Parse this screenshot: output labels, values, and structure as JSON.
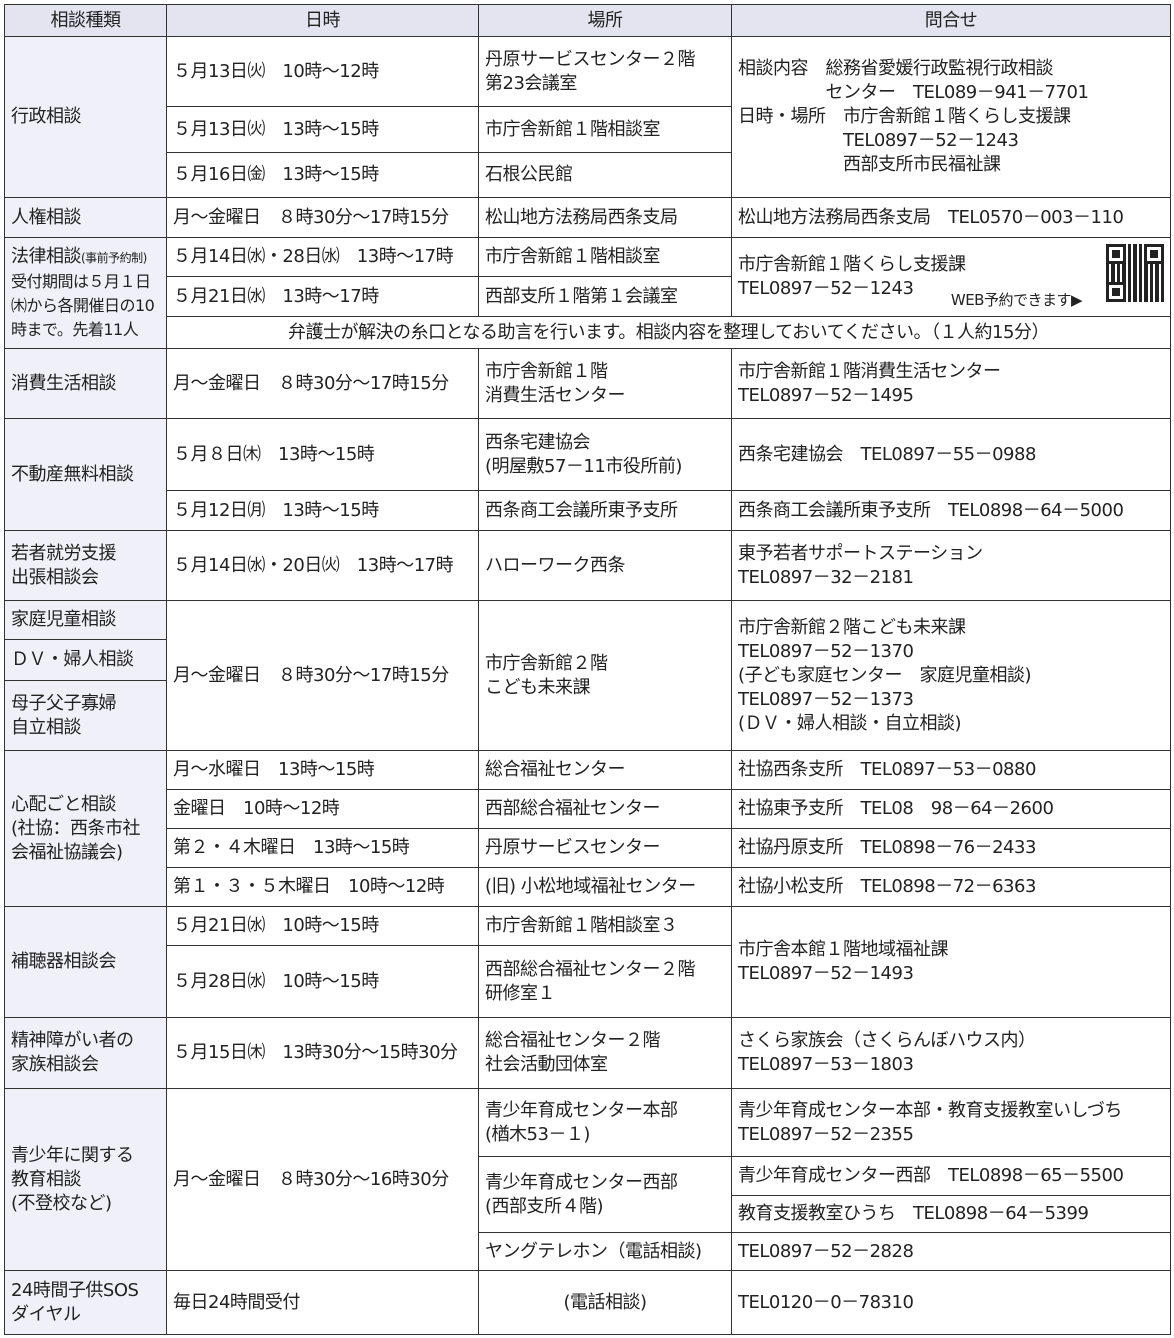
{
  "headers": [
    "相談種類",
    "日時",
    "場所",
    "問合せ"
  ],
  "gyosei": {
    "category": "行政相談",
    "rows": [
      {
        "datetime": "５月13日㈫　10時～12時",
        "place": "丹原サービスセンター２階\n第23会議室"
      },
      {
        "datetime": "５月13日㈫　13時～15時",
        "place": "市庁舎新館１階相談室"
      },
      {
        "datetime": "５月16日㈮　13時～15時",
        "place": "石根公民館"
      }
    ],
    "contact": "相談内容　総務省愛媛行政監視行政相談\n　　　　　センター　TEL089－941－7701\n日時・場所　市庁舎新館１階くらし支援課\n　　　　　　TEL0897－52－1243\n　　　　　　西部支所市民福祉課"
  },
  "jinken": {
    "category": "人権相談",
    "datetime": "月～金曜日　８時30分～17時15分",
    "place": "松山地方法務局西条支局",
    "contact": "松山地方法務局西条支局　TEL0570－003－110"
  },
  "horitsu": {
    "category": "法律相談",
    "category_sub": "(事前予約制)",
    "category_note": "受付期間は５月１日\n㈭から各開催日の10\n時まで。先着11人",
    "rows": [
      {
        "datetime": "５月14日㈬・28日㈬　13時～17時",
        "place": "市庁舎新館１階相談室"
      },
      {
        "datetime": "５月21日㈬　13時～17時",
        "place": "西部支所１階第１会議室"
      }
    ],
    "contact": "市庁舎新館１階くらし支援課\nTEL0897－52－1243",
    "web": "WEB予約できます▶",
    "note": "弁護士が解決の糸口となる助言を行います。相談内容を整理しておいてください。（１人約15分）"
  },
  "shohi": {
    "category": "消費生活相談",
    "datetime": "月～金曜日　８時30分～17時15分",
    "place": "市庁舎新館１階\n消費生活センター",
    "contact": "市庁舎新館１階消費生活センター\nTEL0897－52－1495"
  },
  "fudosan": {
    "category": "不動産無料相談",
    "rows": [
      {
        "datetime": "５月８日㈭　13時～15時",
        "place": "西条宅建協会\n(明屋敷57－11市役所前)",
        "contact": "西条宅建協会　TEL0897－55－0988"
      },
      {
        "datetime": "５月12日㈪　13時～15時",
        "place": "西条商工会議所東予支所",
        "contact": "西条商工会議所東予支所　TEL0898－64－5000"
      }
    ]
  },
  "wakamono": {
    "category": "若者就労支援\n出張相談会",
    "datetime": "５月14日㈬・20日㈫　13時～17時",
    "place": "ハローワーク西条",
    "contact": "東予若者サポートステーション\nTEL0897－32－2181"
  },
  "katei": {
    "categories": [
      "家庭児童相談",
      "ＤＶ・婦人相談",
      "母子父子寡婦\n自立相談"
    ],
    "datetime": "月～金曜日　８時30分～17時15分",
    "place": "市庁舎新館２階\nこども未来課",
    "contact": "市庁舎新館２階こども未来課\nTEL0897－52－1370\n(子ども家庭センター　家庭児童相談)\nTEL0897－52－1373\n(ＤＶ・婦人相談・自立相談)"
  },
  "shinpai": {
    "category": "心配ごと相談\n(社協：西条市社\n会福祉協議会)",
    "rows": [
      {
        "datetime": "月～水曜日　13時～15時",
        "place": "総合福祉センター",
        "contact": "社協西条支所　TEL0897－53－0880"
      },
      {
        "datetime": "金曜日　10時～12時",
        "place": "西部総合福祉センター",
        "contact": "社協東予支所　TEL08　98－64－2600"
      },
      {
        "datetime": "第２・４木曜日　13時～15時",
        "place": "丹原サービスセンター",
        "contact": "社協丹原支所　TEL0898－76－2433"
      },
      {
        "datetime": "第１・３・５木曜日　10時～12時",
        "place": "(旧) 小松地域福祉センター",
        "contact": "社協小松支所　TEL0898－72－6363"
      }
    ]
  },
  "hochoki": {
    "category": "補聴器相談会",
    "rows": [
      {
        "datetime": "５月21日㈬　10時～15時",
        "place": "市庁舎新館１階相談室３"
      },
      {
        "datetime": "５月28日㈬　10時～15時",
        "place": "西部総合福祉センター２階\n研修室１"
      }
    ],
    "contact": "市庁舎本館１階地域福祉課\nTEL0897－52－1493"
  },
  "seishin": {
    "category": "精神障がい者の\n家族相談会",
    "datetime": "５月15日㈭　13時30分～15時30分",
    "place": "総合福祉センター２階\n社会活動団体室",
    "contact": "さくら家族会（さくらんぼハウス内）\nTEL0897－53－1803"
  },
  "seishonen": {
    "category": "青少年に関する\n教育相談\n(不登校など)",
    "datetime": "月～金曜日　８時30分～16時30分",
    "place1": "青少年育成センター本部\n(楢木53－１)",
    "contact1": "青少年育成センター本部・教育支援教室いしづち\nTEL0897－52－2355",
    "place2": "青少年育成センター西部\n(西部支所４階)",
    "contact2a": "青少年育成センター西部　TEL0898－65－5500",
    "contact2b": "教育支援教室ひうち　TEL0898－64－5399",
    "place3": "ヤングテレホン（電話相談)",
    "contact3": "TEL0897－52－2828"
  },
  "sos": {
    "category": "24時間子供SOS\nダイヤル",
    "datetime": "毎日24時間受付",
    "place": "(電話相談)",
    "contact": "TEL0120－0－78310"
  },
  "colors": {
    "header_bg": "#e4e4f1",
    "category_bg": "#f0f0f8",
    "border": "#333333"
  }
}
